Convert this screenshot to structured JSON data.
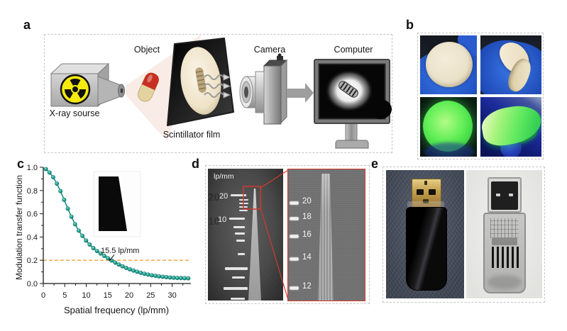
{
  "figure": {
    "panel_labels": {
      "a": "a",
      "b": "b",
      "c": "c",
      "d": "d",
      "e": "e"
    }
  },
  "panel_a": {
    "object_label": "Object",
    "camera_label": "Camera",
    "computer_label": "Computer",
    "xray_source_label": "X-ray sourse",
    "scintillator_label": "Scintillator film"
  },
  "panel_d": {
    "unit_label": "lp/mm",
    "left_scale_labels": [
      "20",
      "10"
    ],
    "zoom_scale_labels": [
      "20",
      "18",
      "16",
      "14",
      "12"
    ]
  },
  "colors": {
    "curve_teal": "#1a9c8e",
    "reference_orange": "#f2a13c",
    "callout_red": "#cf3a2e",
    "glove_blue": "#2a5cd0",
    "scintillator_green": "#5ee957",
    "radiation_yellow": "#f5ea0f"
  },
  "chart_data": {
    "type": "line",
    "title": "",
    "xlabel": "Spatial frequency (lp/mm)",
    "ylabel": "Modulation transfer function",
    "xlim": [
      0,
      34.2
    ],
    "ylim": [
      0,
      1.0
    ],
    "x_ticks": [
      0,
      5,
      10,
      15,
      20,
      25,
      30
    ],
    "y_ticks": [
      "0.0",
      "0.2",
      "0.4",
      "0.6",
      "0.8",
      "1.0"
    ],
    "grid": false,
    "legend": false,
    "marker": "circle",
    "line_color": "#169184",
    "point_color": "#1a9c8e",
    "ref_color": "#f2a13c",
    "axis_color": "#1a1a1a",
    "reference_line_y": 0.2,
    "annotation": "15.5 lp/mm",
    "annotation_xy": [
      15.5,
      0.2
    ],
    "x": [
      0.6,
      1.45,
      2.3,
      3.15,
      4.0,
      4.85,
      5.7,
      6.55,
      7.4,
      8.25,
      9.1,
      9.95,
      10.8,
      11.65,
      12.5,
      13.35,
      14.2,
      15.05,
      15.9,
      16.75,
      17.6,
      18.45,
      19.3,
      20.15,
      21.0,
      21.85,
      22.7,
      23.55,
      24.4,
      25.25,
      26.1,
      26.95,
      27.8,
      28.65,
      29.5,
      30.35,
      31.2,
      32.05,
      32.9,
      33.75
    ],
    "y": [
      0.985,
      0.955,
      0.915,
      0.86,
      0.795,
      0.72,
      0.645,
      0.575,
      0.51,
      0.455,
      0.41,
      0.37,
      0.335,
      0.305,
      0.28,
      0.258,
      0.238,
      0.218,
      0.198,
      0.18,
      0.163,
      0.148,
      0.134,
      0.122,
      0.111,
      0.101,
      0.092,
      0.084,
      0.077,
      0.071,
      0.066,
      0.062,
      0.058,
      0.055,
      0.052,
      0.05,
      0.048,
      0.047,
      0.046,
      0.045
    ]
  }
}
